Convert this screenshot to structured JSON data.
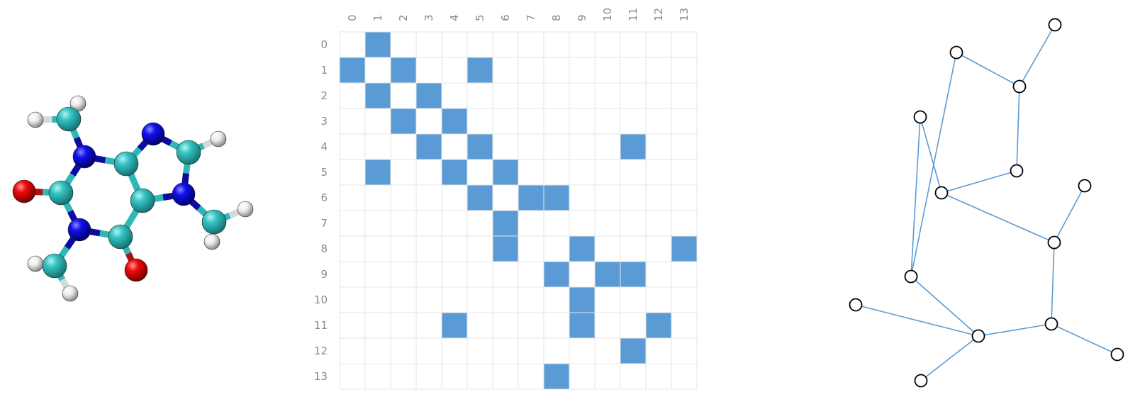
{
  "molecule": {
    "name": "",
    "element_colors": {
      "C": "#2fbfbf",
      "N": "#0a0ae6",
      "O": "#ee0a0a",
      "H": "#ededed"
    },
    "bond_color_dark": "#0c0c9e",
    "bond_color_light": "#2fbfbf",
    "atoms": [
      {
        "id": "C1",
        "el": "C"
      },
      {
        "id": "N1",
        "el": "N"
      },
      {
        "id": "C2",
        "el": "C"
      },
      {
        "id": "O1",
        "el": "O"
      },
      {
        "id": "N2",
        "el": "N"
      },
      {
        "id": "C3",
        "el": "C"
      },
      {
        "id": "O2",
        "el": "O"
      },
      {
        "id": "C4",
        "el": "C"
      },
      {
        "id": "C5",
        "el": "C"
      },
      {
        "id": "C6",
        "el": "C"
      },
      {
        "id": "N3",
        "el": "N"
      },
      {
        "id": "C7",
        "el": "C"
      },
      {
        "id": "N4",
        "el": "N"
      },
      {
        "id": "C8",
        "el": "C"
      },
      {
        "id": "H1",
        "el": "H"
      },
      {
        "id": "H2",
        "el": "H"
      },
      {
        "id": "H3",
        "el": "H"
      },
      {
        "id": "H4",
        "el": "H"
      },
      {
        "id": "H5",
        "el": "H"
      },
      {
        "id": "H6",
        "el": "H"
      },
      {
        "id": "H7",
        "el": "H"
      },
      {
        "id": "H8",
        "el": "H"
      },
      {
        "id": "H9",
        "el": "H"
      },
      {
        "id": "H10",
        "el": "H"
      }
    ],
    "bonds": [
      [
        "C1",
        "N1"
      ],
      [
        "N1",
        "C2"
      ],
      [
        "C2",
        "O1"
      ],
      [
        "C2",
        "N2"
      ],
      [
        "N2",
        "C3"
      ],
      [
        "C3",
        "O2"
      ],
      [
        "C3",
        "C4"
      ],
      [
        "C4",
        "C5"
      ],
      [
        "C5",
        "N1"
      ],
      [
        "C5",
        "N3"
      ],
      [
        "N3",
        "C7"
      ],
      [
        "C7",
        "N4"
      ],
      [
        "N4",
        "C4"
      ],
      [
        "N4",
        "C8"
      ],
      [
        "C1",
        "H1"
      ],
      [
        "C1",
        "H2"
      ],
      [
        "C6",
        "N2"
      ],
      [
        "C6",
        "H3"
      ],
      [
        "C6",
        "H4"
      ],
      [
        "C7",
        "H5"
      ],
      [
        "C8",
        "H6"
      ],
      [
        "C8",
        "H7"
      ],
      [
        "C1",
        "H8"
      ],
      [
        "C6",
        "H9"
      ],
      [
        "C8",
        "H10"
      ]
    ]
  },
  "matrix": {
    "size": 14,
    "row_labels": [
      "0",
      "1",
      "2",
      "3",
      "4",
      "5",
      "6",
      "7",
      "8",
      "9",
      "10",
      "11",
      "12",
      "13"
    ],
    "col_labels": [
      "0",
      "1",
      "2",
      "3",
      "4",
      "5",
      "6",
      "7",
      "8",
      "9",
      "10",
      "11",
      "12",
      "13"
    ],
    "filled_color": "#5b9bd5",
    "grid_color": "#e4e4e4",
    "filled_cells": [
      [
        0,
        1
      ],
      [
        1,
        0
      ],
      [
        1,
        2
      ],
      [
        1,
        5
      ],
      [
        2,
        1
      ],
      [
        2,
        3
      ],
      [
        3,
        2
      ],
      [
        3,
        4
      ],
      [
        4,
        3
      ],
      [
        4,
        5
      ],
      [
        4,
        11
      ],
      [
        5,
        1
      ],
      [
        5,
        4
      ],
      [
        5,
        6
      ],
      [
        6,
        5
      ],
      [
        6,
        7
      ],
      [
        6,
        8
      ],
      [
        7,
        6
      ],
      [
        8,
        6
      ],
      [
        8,
        9
      ],
      [
        8,
        13
      ],
      [
        9,
        8
      ],
      [
        9,
        10
      ],
      [
        9,
        11
      ],
      [
        10,
        9
      ],
      [
        11,
        4
      ],
      [
        11,
        9
      ],
      [
        11,
        12
      ],
      [
        12,
        11
      ],
      [
        13,
        8
      ]
    ]
  },
  "graph": {
    "edge_color": "#5b9bd5",
    "node_fill": "#ffffff",
    "node_stroke": "#000000",
    "nodes": [
      "n0",
      "n1",
      "n2",
      "n3",
      "n4",
      "n5",
      "n6",
      "n7",
      "n8",
      "n9",
      "n10",
      "n11",
      "n12",
      "n13"
    ],
    "edges": [
      [
        "n0",
        "n1"
      ],
      [
        "n1",
        "n2"
      ],
      [
        "n1",
        "n3"
      ],
      [
        "n3",
        "n4"
      ],
      [
        "n4",
        "n5"
      ],
      [
        "n5",
        "n6"
      ],
      [
        "n2",
        "n6"
      ],
      [
        "n6",
        "n7"
      ],
      [
        "n7",
        "n8"
      ],
      [
        "n7",
        "n9"
      ],
      [
        "n4",
        "n10"
      ],
      [
        "n10",
        "n11"
      ],
      [
        "n10",
        "n12"
      ],
      [
        "n12",
        "n13"
      ],
      [
        "n12",
        "n7"
      ]
    ]
  }
}
